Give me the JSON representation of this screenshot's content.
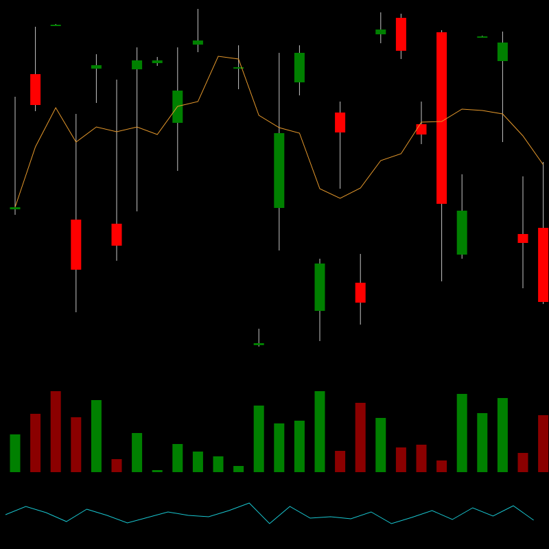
{
  "chart_data": [
    {
      "type": "candlestick",
      "open": [
        495,
        692,
        764,
        480,
        700,
        474,
        699,
        708,
        621,
        735,
        null,
        702,
        297,
        497,
        680,
        347,
        636,
        388,
        750,
        774,
        619,
        753,
        429,
        746,
        711,
        459,
        468
      ],
      "high": [
        659,
        761,
        765,
        634,
        721,
        684,
        731,
        717,
        731,
        787,
        null,
        734,
        321,
        723,
        734,
        423,
        652,
        430,
        782,
        780,
        652,
        756,
        546,
        748,
        754,
        543,
        564
      ],
      "low": [
        487,
        638,
        763,
        345,
        650,
        420,
        492,
        704,
        551,
        724,
        null,
        670,
        295,
        435,
        661,
        303,
        525,
        327,
        737,
        714,
        590,
        390,
        423,
        745,
        593,
        380,
        357
      ],
      "close": [
        498,
        647,
        764,
        407,
        705,
        442,
        712,
        712,
        668,
        741,
        null,
        702,
        300,
        606,
        723,
        416,
        607,
        359,
        757,
        726,
        604,
        503,
        493,
        747,
        738,
        446,
        360
      ],
      "ma": [
        498,
        586,
        643,
        593,
        615,
        608,
        615,
        604,
        645,
        652,
        718,
        714,
        632,
        614,
        606,
        525,
        511,
        526,
        566,
        576,
        622,
        623,
        641,
        639,
        634,
        602,
        560
      ],
      "up_color": "#008000",
      "down_color": "#ff0000",
      "wick_color": "#c8c8c8",
      "ma_color": "#e89a2c",
      "ylim": [
        0,
        800
      ]
    },
    {
      "type": "bar",
      "values": [
        55,
        85,
        118,
        80,
        105,
        19,
        57,
        3,
        41,
        30,
        23,
        9,
        97,
        71,
        75,
        118,
        31,
        101,
        79,
        36,
        40,
        17,
        114,
        86,
        108,
        28,
        83
      ],
      "colors": [
        "#008000",
        "#8b0000",
        "#8b0000",
        "#8b0000",
        "#008000",
        "#8b0000",
        "#008000",
        "#008000",
        "#008000",
        "#008000",
        "#008000",
        "#008000",
        "#008000",
        "#008000",
        "#008000",
        "#008000",
        "#8b0000",
        "#8b0000",
        "#008000",
        "#8b0000",
        "#8b0000",
        "#8b0000",
        "#008000",
        "#008000",
        "#008000",
        "#8b0000",
        "#8b0000"
      ],
      "ylim": [
        0,
        688
      ]
    },
    {
      "type": "line",
      "values": [
        50,
        62,
        53,
        40,
        58,
        49,
        38,
        46,
        54,
        49,
        47,
        56,
        67,
        37,
        62,
        45,
        47,
        44,
        54,
        37,
        46,
        56,
        43,
        60,
        48,
        63,
        42
      ],
      "color": "#19c8d2",
      "ylim": [
        0,
        800
      ]
    }
  ]
}
